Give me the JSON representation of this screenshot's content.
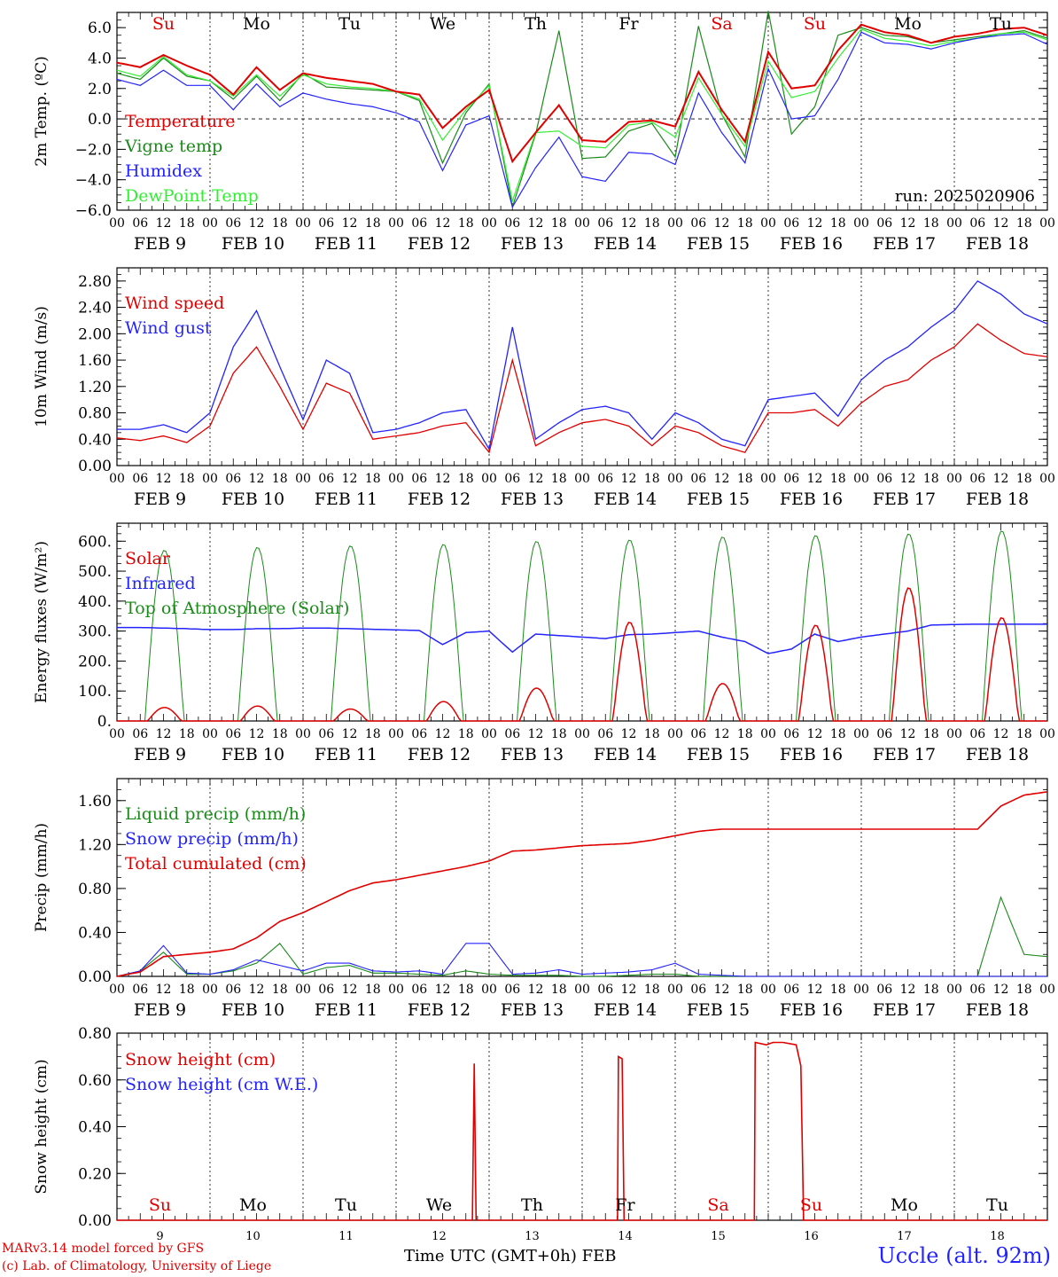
{
  "run_label": "run: 2025020906",
  "x_hour_ticks": [
    "00",
    "06",
    "12",
    "18"
  ],
  "date_labels": [
    "FEB  9",
    "FEB 10",
    "FEB 11",
    "FEB 12",
    "FEB 13",
    "FEB 14",
    "FEB 15",
    "FEB 16",
    "FEB 17",
    "FEB 18"
  ],
  "day_numbers": [
    "9",
    "10",
    "11",
    "12",
    "13",
    "14",
    "15",
    "16",
    "17",
    "18"
  ],
  "weekday_labels": [
    {
      "text": "Su",
      "color": "#e00000"
    },
    {
      "text": "Mo",
      "color": "#000000"
    },
    {
      "text": "Tu",
      "color": "#000000"
    },
    {
      "text": "We",
      "color": "#000000"
    },
    {
      "text": "Th",
      "color": "#000000"
    },
    {
      "text": "Fr",
      "color": "#000000"
    },
    {
      "text": "Sa",
      "color": "#e00000"
    },
    {
      "text": "Su",
      "color": "#e00000"
    },
    {
      "text": "Mo",
      "color": "#000000"
    },
    {
      "text": "Tu",
      "color": "#000000"
    }
  ],
  "footer": {
    "model": "MARv3.14 model forced by GFS",
    "lab": "(c) Lab. of Climatology, University of Liege",
    "xaxis": "Time UTC (GMT+0h) FEB",
    "station": "Uccle (alt. 92m)"
  },
  "colors": {
    "red": "#e00000",
    "green": "#1a8a1a",
    "blue": "#2323ff",
    "lightgreen": "#33ee33"
  },
  "chart_data": [
    {
      "type": "line",
      "ylabel": "2m Temp. (ºC)",
      "ylim": [
        -6,
        7
      ],
      "yticks": [
        "6.0",
        "4.0",
        "2.0",
        "0.0",
        "−2.0",
        "−4.0",
        "−6.0"
      ],
      "ytick_values": [
        6,
        4,
        2,
        0,
        -2,
        -4,
        -6
      ],
      "zero_line": true,
      "x_days": [
        0,
        0.25,
        0.5,
        0.75,
        1,
        1.25,
        1.5,
        1.75,
        2,
        2.25,
        2.5,
        2.75,
        3,
        3.25,
        3.5,
        3.75,
        4,
        4.25,
        4.5,
        4.75,
        5,
        5.25,
        5.5,
        5.75,
        6,
        6.25,
        6.5,
        6.75,
        7,
        7.25,
        7.5,
        7.75,
        8,
        8.25,
        8.5,
        8.75,
        9,
        9.25,
        9.5,
        9.75,
        10
      ],
      "series": [
        {
          "name": "Temperature",
          "color": "#e00000",
          "values": [
            3.7,
            3.4,
            4.2,
            3.5,
            2.9,
            1.6,
            3.4,
            1.9,
            3.0,
            2.7,
            2.5,
            2.3,
            1.8,
            1.6,
            -0.6,
            0.8,
            1.9,
            -2.8,
            -0.9,
            0.9,
            -1.4,
            -1.5,
            -0.2,
            -0.1,
            -0.5,
            3.1,
            0.6,
            -1.5,
            4.4,
            2.0,
            2.2,
            4.5,
            6.2,
            5.7,
            5.5,
            5.0,
            5.4,
            5.6,
            5.9,
            6.0,
            5.5
          ]
        },
        {
          "name": "Vigne temp",
          "color": "#1a8a1a",
          "values": [
            3.0,
            2.6,
            4.0,
            2.8,
            2.5,
            1.3,
            2.8,
            1.2,
            3.0,
            2.1,
            2.0,
            1.9,
            1.8,
            1.2,
            -2.9,
            0.4,
            2.3,
            -5.8,
            -1.0,
            5.8,
            -2.6,
            -2.5,
            -0.8,
            -0.3,
            -2.5,
            6.1,
            0.3,
            -2.5,
            7.1,
            -1.0,
            0.8,
            5.5,
            6.0,
            5.5,
            5.4,
            5.0,
            5.2,
            5.4,
            5.6,
            5.8,
            5.3
          ]
        },
        {
          "name": "Humidex",
          "color": "#2323ff",
          "values": [
            2.6,
            2.2,
            3.2,
            2.2,
            2.2,
            0.6,
            2.3,
            0.8,
            1.7,
            1.3,
            1.0,
            0.8,
            0.4,
            -0.2,
            -3.4,
            -0.4,
            0.2,
            -5.8,
            -3.2,
            -1.2,
            -3.8,
            -4.1,
            -2.2,
            -2.3,
            -3.0,
            1.7,
            -0.9,
            -2.9,
            3.3,
            0.0,
            0.2,
            2.6,
            5.7,
            5.0,
            4.9,
            4.6,
            5.0,
            5.3,
            5.5,
            5.6,
            4.9
          ]
        },
        {
          "name": "DewPoint Temp",
          "color": "#33ee33",
          "values": [
            3.2,
            2.8,
            4.1,
            2.9,
            2.5,
            1.5,
            2.9,
            1.5,
            2.9,
            2.3,
            2.1,
            2.0,
            1.8,
            1.3,
            -1.4,
            0.6,
            2.2,
            -5.4,
            -0.9,
            -0.8,
            -1.8,
            -1.9,
            -0.4,
            -0.2,
            -1.2,
            2.7,
            0.3,
            -1.8,
            3.8,
            1.4,
            1.8,
            4.0,
            5.9,
            5.3,
            5.1,
            4.8,
            5.1,
            5.3,
            5.6,
            5.7,
            5.2
          ]
        }
      ]
    },
    {
      "type": "line",
      "ylabel": "10m Wind (m/s)",
      "ylim": [
        0,
        3.0
      ],
      "yticks": [
        "2.80",
        "2.40",
        "2.00",
        "1.60",
        "1.20",
        "0.80",
        "0.40",
        "0.00"
      ],
      "ytick_values": [
        2.8,
        2.4,
        2.0,
        1.6,
        1.2,
        0.8,
        0.4,
        0.0
      ],
      "x_days": [
        0,
        0.25,
        0.5,
        0.75,
        1,
        1.25,
        1.5,
        1.75,
        2,
        2.25,
        2.5,
        2.75,
        3,
        3.25,
        3.5,
        3.75,
        4,
        4.25,
        4.5,
        4.75,
        5,
        5.25,
        5.5,
        5.75,
        6,
        6.25,
        6.5,
        6.75,
        7,
        7.25,
        7.5,
        7.75,
        8,
        8.25,
        8.5,
        8.75,
        9,
        9.25,
        9.5,
        9.75,
        10
      ],
      "series": [
        {
          "name": "Wind speed",
          "color": "#e00000",
          "values": [
            0.42,
            0.38,
            0.45,
            0.35,
            0.6,
            1.4,
            1.8,
            1.2,
            0.55,
            1.25,
            1.1,
            0.4,
            0.45,
            0.5,
            0.6,
            0.65,
            0.2,
            1.6,
            0.3,
            0.5,
            0.65,
            0.7,
            0.6,
            0.3,
            0.6,
            0.5,
            0.3,
            0.2,
            0.8,
            0.8,
            0.85,
            0.6,
            0.95,
            1.2,
            1.3,
            1.6,
            1.8,
            2.15,
            1.9,
            1.7,
            1.65
          ]
        },
        {
          "name": "Wind gust",
          "color": "#2323ff",
          "values": [
            0.55,
            0.55,
            0.62,
            0.5,
            0.8,
            1.8,
            2.35,
            1.5,
            0.7,
            1.6,
            1.4,
            0.5,
            0.55,
            0.65,
            0.8,
            0.85,
            0.25,
            2.1,
            0.4,
            0.65,
            0.85,
            0.9,
            0.8,
            0.4,
            0.8,
            0.65,
            0.4,
            0.3,
            1.0,
            1.05,
            1.1,
            0.75,
            1.3,
            1.6,
            1.8,
            2.1,
            2.35,
            2.8,
            2.6,
            2.3,
            2.15
          ]
        }
      ]
    },
    {
      "type": "line",
      "ylabel": "Energy fluxes (W/m²)",
      "ylim": [
        0,
        660
      ],
      "yticks": [
        "600.",
        "500.",
        "400.",
        "300.",
        "200.",
        "100.",
        "0."
      ],
      "ytick_values": [
        600,
        500,
        400,
        300,
        200,
        100,
        0
      ],
      "x_days": [
        0,
        0.25,
        0.5,
        0.75,
        1,
        1.25,
        1.5,
        1.75,
        2,
        2.25,
        2.5,
        2.75,
        3,
        3.25,
        3.5,
        3.75,
        4,
        4.25,
        4.5,
        4.75,
        5,
        5.25,
        5.5,
        5.75,
        6,
        6.25,
        6.5,
        6.75,
        7,
        7.25,
        7.5,
        7.75,
        8,
        8.25,
        8.5,
        8.75,
        9,
        9.25,
        9.5,
        9.75,
        10
      ],
      "series": [
        {
          "name": "Solar",
          "color": "#e00000",
          "peaks": [
            45,
            50,
            40,
            65,
            110,
            330,
            125,
            320,
            445,
            345
          ]
        },
        {
          "name": "Infrared",
          "color": "#2323ff",
          "values": [
            312,
            312,
            310,
            308,
            305,
            305,
            308,
            308,
            310,
            310,
            308,
            306,
            304,
            302,
            255,
            295,
            300,
            230,
            290,
            285,
            280,
            275,
            288,
            290,
            295,
            300,
            280,
            265,
            225,
            240,
            290,
            265,
            280,
            290,
            300,
            320,
            322,
            323,
            323,
            323,
            323
          ]
        },
        {
          "name": "Top of Atmosphere (Solar)",
          "color": "#1a8a1a",
          "peaks": [
            570,
            580,
            585,
            590,
            600,
            605,
            615,
            620,
            625,
            635
          ]
        }
      ]
    },
    {
      "type": "line",
      "ylabel": "Precip (mm/h)",
      "ylim": [
        0,
        1.8
      ],
      "yticks": [
        "1.60",
        "1.20",
        "0.80",
        "0.40",
        "0.00"
      ],
      "ytick_values": [
        1.6,
        1.2,
        0.8,
        0.4,
        0.0
      ],
      "x_days": [
        0,
        0.25,
        0.5,
        0.75,
        1,
        1.25,
        1.5,
        1.75,
        2,
        2.25,
        2.5,
        2.75,
        3,
        3.25,
        3.5,
        3.75,
        4,
        4.25,
        4.5,
        4.75,
        5,
        5.25,
        5.5,
        5.75,
        6,
        6.25,
        6.5,
        6.75,
        7,
        7.25,
        7.5,
        7.75,
        8,
        8.25,
        8.5,
        8.75,
        9,
        9.25,
        9.5,
        9.75,
        10
      ],
      "series": [
        {
          "name": "Liquid precip (mm/h)",
          "color": "#1a8a1a",
          "values": [
            0,
            0.05,
            0.22,
            0.02,
            0.02,
            0.05,
            0.12,
            0.3,
            0.02,
            0.08,
            0.1,
            0.03,
            0.03,
            0.02,
            0.01,
            0.05,
            0.02,
            0.01,
            0.01,
            0.01,
            0.0,
            0.0,
            0.01,
            0.02,
            0.02,
            0.0,
            0.0,
            0.0,
            0.0,
            0.0,
            0.0,
            0.0,
            0.0,
            0.0,
            0.0,
            0.0,
            0.0,
            0.0,
            0.72,
            0.2,
            0.18
          ]
        },
        {
          "name": "Snow precip (mm/h)",
          "color": "#2323ff",
          "values": [
            0,
            0.05,
            0.28,
            0.03,
            0.02,
            0.06,
            0.15,
            0.1,
            0.05,
            0.12,
            0.12,
            0.05,
            0.04,
            0.05,
            0.02,
            0.3,
            0.3,
            0.02,
            0.03,
            0.06,
            0.02,
            0.03,
            0.04,
            0.06,
            0.12,
            0.02,
            0.01,
            0.0,
            0.0,
            0.0,
            0.0,
            0.0,
            0.0,
            0.0,
            0.0,
            0.0,
            0.0,
            0.0,
            0.0,
            0.0,
            0.0
          ]
        },
        {
          "name": "Total cumulated (cm)",
          "color": "#e00000",
          "values": [
            0,
            0.04,
            0.18,
            0.2,
            0.22,
            0.25,
            0.35,
            0.5,
            0.58,
            0.68,
            0.78,
            0.85,
            0.88,
            0.92,
            0.96,
            1.0,
            1.05,
            1.14,
            1.15,
            1.17,
            1.19,
            1.2,
            1.21,
            1.24,
            1.28,
            1.32,
            1.34,
            1.34,
            1.34,
            1.34,
            1.34,
            1.34,
            1.34,
            1.34,
            1.34,
            1.34,
            1.34,
            1.34,
            1.55,
            1.65,
            1.68
          ]
        }
      ]
    },
    {
      "type": "line",
      "ylabel": "Snow height (cm)",
      "ylim": [
        0,
        0.8
      ],
      "yticks": [
        "0.80",
        "0.60",
        "0.40",
        "0.20",
        "0.00"
      ],
      "ytick_values": [
        0.8,
        0.6,
        0.4,
        0.2,
        0.0
      ],
      "series": [
        {
          "name": "Snow height (cm)",
          "color": "#e00000",
          "points": [
            [
              0,
              0
            ],
            [
              3.82,
              0
            ],
            [
              3.84,
              0.67
            ],
            [
              3.86,
              0
            ],
            [
              5.38,
              0
            ],
            [
              5.39,
              0.7
            ],
            [
              5.43,
              0.69
            ],
            [
              5.45,
              0
            ],
            [
              6.85,
              0
            ],
            [
              6.86,
              0.76
            ],
            [
              6.98,
              0.75
            ],
            [
              7.05,
              0.76
            ],
            [
              7.16,
              0.76
            ],
            [
              7.3,
              0.75
            ],
            [
              7.35,
              0.66
            ],
            [
              7.38,
              0
            ],
            [
              10,
              0
            ]
          ]
        },
        {
          "name": "Snow height (cm W.E.)",
          "color": "#2323ff",
          "points": []
        }
      ]
    }
  ]
}
